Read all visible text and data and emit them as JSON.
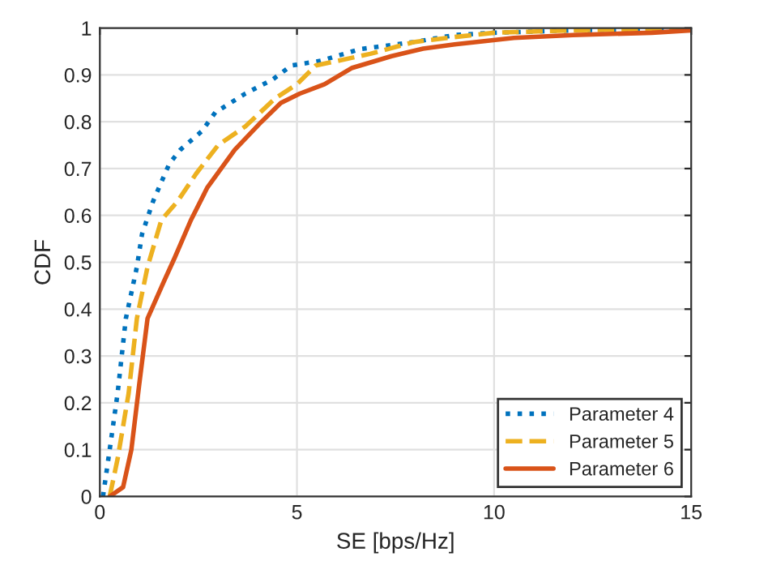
{
  "chart_data": {
    "type": "line",
    "xlabel": "SE [bps/Hz]",
    "ylabel": "CDF",
    "xlim": [
      0,
      15
    ],
    "xticks": [
      0,
      5,
      10,
      15
    ],
    "ylim": [
      0,
      1
    ],
    "yticks": [
      0,
      0.1,
      0.2,
      0.3,
      0.4,
      0.5,
      0.6,
      0.7,
      0.8,
      0.9,
      1
    ],
    "grid": true,
    "legend": "bottom right",
    "series": [
      {
        "name": "Parameter 4",
        "color": "#0072bd",
        "line_style": "dotted",
        "x": [
          0.08,
          0.25,
          0.45,
          0.66,
          0.94,
          1.07,
          1.35,
          1.76,
          2.04,
          2.59,
          2.93,
          3.69,
          4.38,
          4.86,
          5.6,
          6.6,
          7.05,
          7.96,
          9,
          10,
          12,
          15
        ],
        "values": [
          0,
          0.1,
          0.22,
          0.38,
          0.49,
          0.56,
          0.63,
          0.71,
          0.74,
          0.78,
          0.82,
          0.86,
          0.89,
          0.92,
          0.93,
          0.955,
          0.96,
          0.97,
          0.985,
          0.99,
          0.995,
          1
        ]
      },
      {
        "name": "Parameter 5",
        "color": "#edb120",
        "line_style": "dashed",
        "x": [
          0.25,
          0.45,
          0.73,
          0.94,
          1.21,
          1.56,
          1.97,
          2.45,
          3.0,
          3.69,
          4.45,
          5.0,
          5.48,
          6.03,
          6.86,
          7.96,
          8.9,
          10,
          12,
          15
        ],
        "values": [
          0,
          0.08,
          0.22,
          0.38,
          0.49,
          0.59,
          0.63,
          0.69,
          0.75,
          0.79,
          0.85,
          0.88,
          0.92,
          0.93,
          0.945,
          0.97,
          0.98,
          0.99,
          0.995,
          1
        ]
      },
      {
        "name": "Parameter 6",
        "color": "#d95319",
        "line_style": "solid",
        "x": [
          0.25,
          0.59,
          0.8,
          1.0,
          1.21,
          1.63,
          1.9,
          2.31,
          2.73,
          3.42,
          4.1,
          4.59,
          5.07,
          5.7,
          6.4,
          7.4,
          8.2,
          9,
          10.5,
          12,
          14,
          15
        ],
        "values": [
          0,
          0.02,
          0.1,
          0.24,
          0.38,
          0.46,
          0.51,
          0.59,
          0.66,
          0.74,
          0.8,
          0.84,
          0.86,
          0.88,
          0.915,
          0.94,
          0.956,
          0.965,
          0.979,
          0.985,
          0.99,
          0.995
        ]
      }
    ]
  }
}
